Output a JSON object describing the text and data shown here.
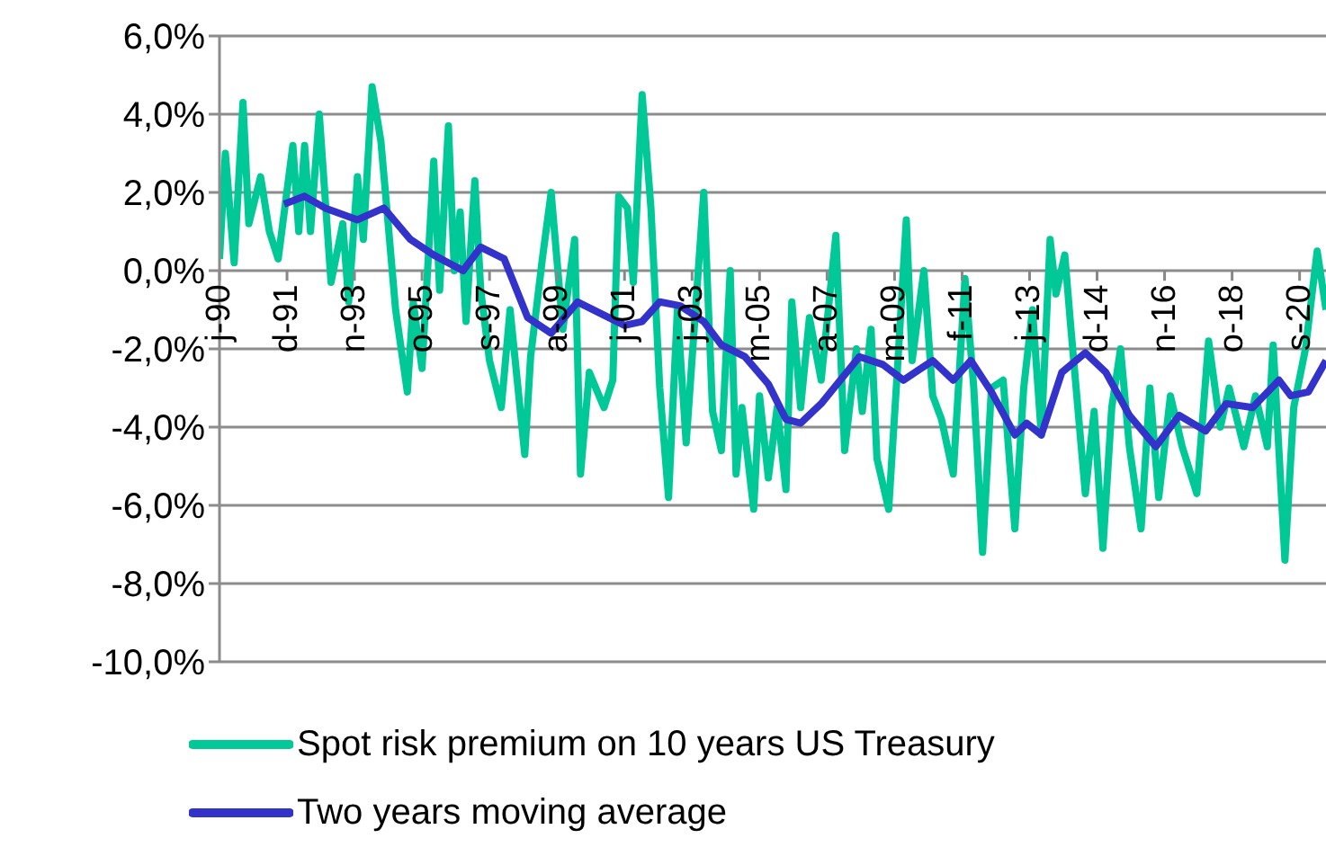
{
  "chart_data": {
    "type": "line",
    "x": [
      "1990-01",
      "1990-03",
      "1990-06",
      "1990-09",
      "1990-11",
      "1991-03",
      "1991-06",
      "1991-09",
      "1992-02",
      "1992-04",
      "1992-06",
      "1992-08",
      "1992-11",
      "1993-03",
      "1993-07",
      "1993-09",
      "1993-12",
      "1994-02",
      "1994-05",
      "1994-08",
      "1994-10",
      "1995-01",
      "1995-05",
      "1995-07",
      "1995-10",
      "1996-02",
      "1996-04",
      "1996-07",
      "1996-09",
      "1996-11",
      "1997-01",
      "1997-04",
      "1997-06",
      "1997-09",
      "1998-01",
      "1998-04",
      "1998-09",
      "1998-11",
      "1999-03",
      "1999-06",
      "1999-10",
      "2000-02",
      "2000-04",
      "2000-07",
      "2000-12",
      "2001-03",
      "2001-05",
      "2001-08",
      "2001-10",
      "2002-01",
      "2002-04",
      "2002-07",
      "2002-10",
      "2003-01",
      "2003-04",
      "2003-10",
      "2004-01",
      "2004-04",
      "2004-07",
      "2004-09",
      "2004-11",
      "2005-03",
      "2005-05",
      "2005-08",
      "2005-11",
      "2006-02",
      "2006-04",
      "2006-07",
      "2006-10",
      "2007-02",
      "2007-07",
      "2007-10",
      "2008-02",
      "2008-04",
      "2008-07",
      "2008-09",
      "2009-01",
      "2009-04",
      "2009-07",
      "2009-09",
      "2010-01",
      "2010-04",
      "2010-07",
      "2010-11",
      "2011-03",
      "2011-06",
      "2011-09",
      "2011-12",
      "2012-04",
      "2012-08",
      "2012-11",
      "2013-02",
      "2013-05",
      "2013-08",
      "2013-10",
      "2014-01",
      "2014-03",
      "2014-08",
      "2014-11",
      "2015-02",
      "2015-05",
      "2015-08",
      "2015-11",
      "2016-03",
      "2016-06",
      "2016-09",
      "2017-01",
      "2017-05",
      "2017-10",
      "2018-02",
      "2018-06",
      "2018-09",
      "2019-02",
      "2019-06",
      "2019-10",
      "2019-12",
      "2020-04",
      "2020-07",
      "2020-11",
      "2021-03",
      "2021-06"
    ],
    "series": [
      {
        "name": "Spot risk premium on 10 years US Treasury",
        "color": "#00c896",
        "values": [
          0.3,
          3.0,
          0.2,
          4.3,
          1.2,
          2.4,
          1.0,
          0.3,
          3.2,
          1.0,
          3.2,
          1.0,
          4.0,
          -0.3,
          1.2,
          -0.8,
          2.4,
          0.8,
          4.7,
          3.3,
          1.6,
          -1.0,
          -3.1,
          -0.8,
          -2.5,
          2.8,
          -0.5,
          3.7,
          0.0,
          1.5,
          -1.3,
          2.3,
          -0.5,
          -2.3,
          -3.5,
          -1.0,
          -4.7,
          -2.2,
          0.3,
          2.0,
          -1.5,
          0.8,
          -5.2,
          -2.6,
          -3.5,
          -2.8,
          1.9,
          1.6,
          -0.3,
          4.5,
          1.6,
          -3.0,
          -5.8,
          -1.0,
          -4.4,
          2.0,
          -3.6,
          -4.6,
          0.0,
          -5.2,
          -3.5,
          -6.1,
          -3.2,
          -5.3,
          -3.5,
          -5.6,
          -0.8,
          -3.5,
          -1.2,
          -2.8,
          0.9,
          -4.6,
          -2.0,
          -3.6,
          -1.5,
          -4.8,
          -6.1,
          -2.5,
          1.3,
          -2.3,
          0.0,
          -3.2,
          -3.8,
          -5.2,
          -0.2,
          -3.0,
          -7.2,
          -3.0,
          -2.8,
          -6.6,
          -3.0,
          -1.0,
          -4.2,
          0.8,
          -0.6,
          0.4,
          -1.4,
          -5.7,
          -3.6,
          -7.1,
          -3.5,
          -2.0,
          -4.5,
          -6.6,
          -3.0,
          -5.8,
          -3.2,
          -4.5,
          -5.7,
          -1.8,
          -4.0,
          -3.0,
          -4.5,
          -3.2,
          -4.5,
          -1.9,
          -7.4,
          -3.5,
          -2.0,
          0.5,
          -1.0
        ]
      },
      {
        "name": "Two years moving average",
        "color": "#3333cc",
        "x": [
          "1991-11",
          "1992-06",
          "1993-01",
          "1993-12",
          "1994-09",
          "1995-06",
          "1996-02",
          "1996-12",
          "1997-06",
          "1998-02",
          "1998-10",
          "1999-06",
          "2000-03",
          "2000-11",
          "2001-07",
          "2002-01",
          "2002-07",
          "2003-02",
          "2003-10",
          "2004-04",
          "2004-12",
          "2005-08",
          "2006-02",
          "2006-07",
          "2007-02",
          "2008-03",
          "2008-11",
          "2009-06",
          "2010-04",
          "2010-11",
          "2011-05",
          "2011-12",
          "2012-08",
          "2012-12",
          "2013-05",
          "2013-12",
          "2014-08",
          "2015-03",
          "2015-11",
          "2016-08",
          "2017-04",
          "2018-01",
          "2018-08",
          "2019-05",
          "2020-02",
          "2020-06",
          "2020-12",
          "2021-06"
        ],
        "values": [
          1.7,
          1.9,
          1.6,
          1.3,
          1.6,
          0.8,
          0.4,
          0.0,
          0.6,
          0.3,
          -1.2,
          -1.6,
          -0.8,
          -1.1,
          -1.4,
          -1.3,
          -0.8,
          -0.9,
          -1.3,
          -1.9,
          -2.2,
          -2.9,
          -3.8,
          -3.9,
          -3.4,
          -2.2,
          -2.4,
          -2.8,
          -2.3,
          -2.8,
          -2.3,
          -3.1,
          -4.2,
          -3.9,
          -4.2,
          -2.6,
          -2.1,
          -2.6,
          -3.7,
          -4.5,
          -3.7,
          -4.1,
          -3.4,
          -3.5,
          -2.8,
          -3.2,
          -3.1,
          -2.3
        ]
      }
    ],
    "xlim": [
      "1990-01",
      "2021-06"
    ],
    "xticks": [
      {
        "value": "1990-01",
        "label": "j-90"
      },
      {
        "value": "1991-12",
        "label": "d-91"
      },
      {
        "value": "1993-11",
        "label": "n-93"
      },
      {
        "value": "1995-10",
        "label": "o-95"
      },
      {
        "value": "1997-09",
        "label": "s-97"
      },
      {
        "value": "1999-08",
        "label": "a-99"
      },
      {
        "value": "2001-07",
        "label": "j-01"
      },
      {
        "value": "2003-06",
        "label": "j-03"
      },
      {
        "value": "2005-05",
        "label": "m-05"
      },
      {
        "value": "2007-04",
        "label": "a-07"
      },
      {
        "value": "2009-03",
        "label": "m-09"
      },
      {
        "value": "2011-02",
        "label": "f-11"
      },
      {
        "value": "2013-01",
        "label": "j-13"
      },
      {
        "value": "2014-12",
        "label": "d-14"
      },
      {
        "value": "2016-11",
        "label": "n-16"
      },
      {
        "value": "2018-10",
        "label": "o-18"
      },
      {
        "value": "2020-09",
        "label": "s-20"
      }
    ],
    "ylim": [
      -10,
      6
    ],
    "yticks": [
      {
        "value": -10,
        "label": "-10,0%"
      },
      {
        "value": -8,
        "label": "-8,0%"
      },
      {
        "value": -6,
        "label": "-6,0%"
      },
      {
        "value": -4,
        "label": "-4,0%"
      },
      {
        "value": -2,
        "label": "-2,0%"
      },
      {
        "value": 0,
        "label": "0,0%"
      },
      {
        "value": 2,
        "label": "2,0%"
      },
      {
        "value": 4,
        "label": "4,0%"
      },
      {
        "value": 6,
        "label": "6,0%"
      }
    ],
    "grid": "y",
    "legend": "bottom",
    "marker": "none",
    "line_style": "solid"
  }
}
